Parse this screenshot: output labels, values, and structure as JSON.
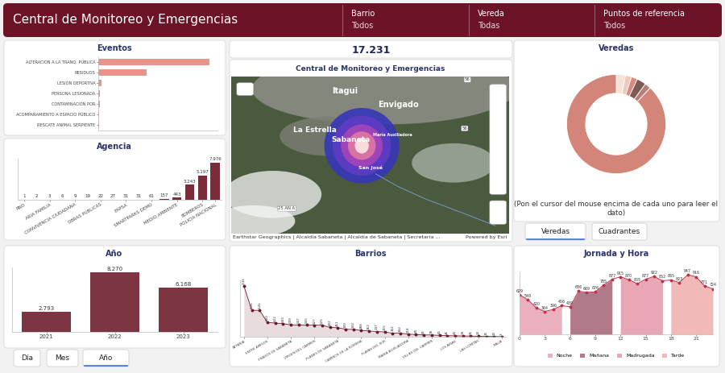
{
  "header": {
    "title": "Central de Monitoreo y Emergencias",
    "filters": [
      {
        "label": "Barrio",
        "value": "Todos"
      },
      {
        "label": "Vereda",
        "value": "Todas"
      },
      {
        "label": "Puntos de referencia",
        "value": "Todos"
      }
    ]
  },
  "kpi": "17.231",
  "map": {
    "title": "Central de Monitoreo y Emergencias",
    "places": [
      "Itagui",
      "Envigado",
      "La Estrella",
      "Sabaneta",
      "María Auxiliadora",
      "San José"
    ],
    "road_signs": [
      "56",
      "56",
      "25 AN A"
    ],
    "attribution": "Earthstar Geographics | Alcaldía Sabaneta | Alcaldía de Sabaneta | Secretaria ...",
    "credit": "Powered by Esri"
  },
  "buttons": {
    "periodo": [
      "Día",
      "Mes",
      "Año"
    ],
    "veredas_tabs": [
      "Veredas",
      "Cuadrantes"
    ]
  },
  "chart_data": [
    {
      "type": "bar",
      "title": "Eventos",
      "orientation": "horizontal",
      "categories": [
        "ALTERACIÓN A LA TRANQ. PÚBLICA",
        "RESIDUOS",
        "LESIÓN DEPORTIVA",
        "PERSONA LESIONADA",
        "CONTAMINACIÓN POR",
        "ACOMPAÑAMIENTO A ESPACIO PÚBLICO",
        "RESCATE ANIMAL SERPIENTE"
      ],
      "values": [
        3531,
        1553,
        90,
        60,
        40,
        25,
        15
      ],
      "color": "#e8948a",
      "xlim": [
        0,
        3800
      ],
      "tick_labels": "y"
    },
    {
      "type": "bar",
      "title": "Agencia",
      "categories": [
        "RNO",
        null,
        "ARIA FAMILIA",
        null,
        "CONVIVENCIA CIUDADANA",
        null,
        "OBRAS PÚBLICAS",
        null,
        "EAPSA",
        null,
        "SMARTPARKS DEMO",
        null,
        "MEDIO AMBIENTE",
        null,
        "BOMBEROS",
        "POLICIA NACIONAL"
      ],
      "values": [
        1,
        2,
        3,
        6,
        9,
        19,
        22,
        27,
        31,
        31,
        61,
        157,
        443,
        3243,
        5197,
        7976
      ],
      "value_labels": [
        "1",
        "2",
        "3",
        "6",
        "9",
        "19",
        "22",
        "27",
        "31",
        "31",
        "61",
        "157",
        "443",
        "3.243",
        "5.197",
        "7.976"
      ],
      "data_labels": true,
      "color": "#7b2c3b",
      "ylim": [
        0,
        8800
      ],
      "tick_labels": "x"
    },
    {
      "type": "bar",
      "title": "Año",
      "categories": [
        "2021",
        "2022",
        "2023"
      ],
      "values": [
        2793,
        8270,
        6168
      ],
      "value_labels": [
        "2.793",
        "8.270",
        "6.168"
      ],
      "data_labels": true,
      "color": "#7d3542",
      "ylim": [
        0,
        9000
      ],
      "tick_labels": "x"
    },
    {
      "type": "area",
      "title": "Barrios",
      "categories": [
        "BETANIA",
        null,
        null,
        "ENTRE AMIGOS",
        null,
        null,
        "PRADOS DE SABANETA",
        null,
        null,
        "VIRGEN DEL CARMEN",
        null,
        null,
        "PLANES DE SABANETA",
        null,
        null,
        "CAMINOS DE LA ROMERA",
        null,
        null,
        "PLAYAS DEL SUR",
        null,
        null,
        "MARIA AUXILIADORA",
        null,
        null,
        "VILLAS DEL CARMEN",
        null,
        null,
        "LOS ARIAS",
        null,
        null,
        "LAS LOMITAS",
        null,
        null,
        "ITALIA"
      ],
      "values": [
        2300,
        1200,
        1200,
        650,
        622,
        593,
        539,
        537,
        535,
        527,
        525,
        422,
        411,
        339,
        332,
        288,
        262,
        237,
        215,
        162,
        160,
        118,
        95,
        81,
        78,
        61,
        46,
        43,
        34,
        31,
        22,
        15,
        10,
        3
      ],
      "value_labels": [
        "2,3k",
        "1,2k",
        "1,2k",
        "650",
        "622",
        "593",
        "539",
        "537",
        "535",
        "527",
        "525",
        "422",
        "411",
        "339",
        "332",
        "288",
        "262",
        "237",
        "215",
        "162",
        "160",
        "118",
        "95",
        "81",
        "78",
        "61",
        "46",
        "43",
        "34",
        "31",
        "22",
        "15",
        "10",
        "3"
      ],
      "data_labels": true,
      "color": "#6b1a2b",
      "marker": "o",
      "ylim": [
        0,
        2600
      ],
      "tick_labels": "x"
    },
    {
      "type": "pie",
      "title": "Veredas",
      "values": [
        3,
        2,
        2,
        3,
        2,
        88
      ],
      "colors": [
        "#f6e3d6",
        "#f0c9bd",
        "#d98b7e",
        "#7d5a55",
        "#b5807a",
        "#d4857a"
      ],
      "hint_lines": [
        "(Pon el cursor del mouse encima de cada uno para leer el",
        "dato)"
      ]
    },
    {
      "type": "area",
      "title": "Jornada y Hora",
      "series": [
        {
          "name": "Noche",
          "color": "#eab0bd",
          "x": [
            0,
            1,
            2,
            3,
            4,
            5
          ],
          "values": [
            629,
            548,
            420,
            364,
            396,
            456
          ]
        },
        {
          "name": "Mañana",
          "color": "#b07a88",
          "x": [
            6,
            7,
            8,
            9,
            10,
            11
          ],
          "values": [
            439,
            686,
            669,
            676,
            785,
            877
          ]
        },
        {
          "name": "Madrugada",
          "color": "#e8a7b6",
          "x": [
            12,
            13,
            14,
            15,
            16,
            17
          ],
          "values": [
            915,
            870,
            805,
            877,
            922,
            852
          ]
        },
        {
          "name": "Tarde",
          "color": "#f2b9b9",
          "x": [
            18,
            19,
            20,
            21,
            22,
            23
          ],
          "values": [
            865,
            823,
            947,
            916,
            771,
            724
          ]
        }
      ],
      "data_labels": true,
      "color": "#c0304a",
      "marker": "o",
      "xlim": [
        0,
        23
      ],
      "xticks": [
        0,
        3,
        6,
        9,
        12,
        15,
        18,
        21
      ],
      "ylim": [
        0,
        1000
      ],
      "tick_labels": "x",
      "legend": "lower center"
    }
  ]
}
